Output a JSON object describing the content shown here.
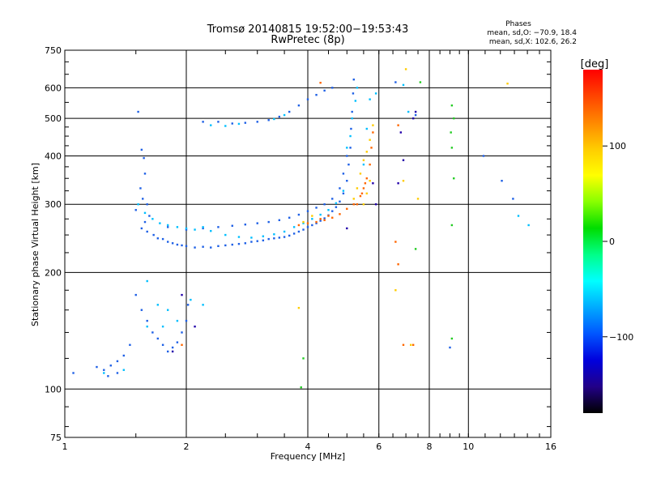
{
  "chart_data": {
    "type": "scatter",
    "title": "Tromsø 20140815 19:52:00−19:53:43",
    "subtitle": "RwPretec (8p)",
    "xlabel": "Frequency [MHz]",
    "ylabel": "Stationary phase Virtual Height [km]",
    "xscale": "log",
    "yscale": "log",
    "xlim": [
      1,
      16
    ],
    "ylim": [
      75,
      750
    ],
    "xticks": [
      1,
      2,
      4,
      6,
      8,
      10,
      16
    ],
    "yticks": [
      75,
      100,
      200,
      300,
      400,
      500,
      600,
      750
    ],
    "xgrid": [
      2,
      4,
      6,
      8,
      10
    ],
    "ygrid": [
      100,
      200,
      300,
      400,
      500,
      600
    ],
    "grid": true,
    "legend": {
      "title": "Phases",
      "line1": "mean, sd,O: −70.9, 18.4",
      "line2": "mean, sd,X: 102.6, 26.2",
      "placement": "top-right"
    },
    "colorbar": {
      "label": "[deg]",
      "min": -180,
      "max": 180,
      "ticks": [
        100,
        0,
        -100
      ],
      "stops": [
        "#ff0000",
        "#ff4400",
        "#ff8800",
        "#ffcc00",
        "#ffff00",
        "#88ff00",
        "#00dd00",
        "#00ff88",
        "#00ffff",
        "#00aaff",
        "#0055ff",
        "#0000dd",
        "#220088",
        "#000000"
      ]
    },
    "series": [
      {
        "color": "#1e60e6",
        "points": [
          [
            1.52,
            520
          ],
          [
            1.55,
            415
          ],
          [
            1.57,
            395
          ],
          [
            1.58,
            360
          ],
          [
            1.54,
            330
          ],
          [
            1.56,
            310
          ],
          [
            1.6,
            300
          ],
          [
            1.5,
            290
          ],
          [
            1.62,
            280
          ],
          [
            1.58,
            270
          ],
          [
            1.55,
            260
          ],
          [
            1.6,
            255
          ],
          [
            1.66,
            250
          ],
          [
            1.7,
            245
          ],
          [
            1.75,
            244
          ],
          [
            1.8,
            240
          ],
          [
            1.85,
            238
          ],
          [
            1.9,
            236
          ],
          [
            1.95,
            235
          ],
          [
            2.0,
            234
          ],
          [
            2.1,
            232
          ],
          [
            2.2,
            233
          ],
          [
            2.3,
            232
          ],
          [
            2.4,
            234
          ],
          [
            2.5,
            235
          ],
          [
            2.6,
            236
          ],
          [
            2.7,
            237
          ],
          [
            2.8,
            238
          ],
          [
            2.9,
            240
          ],
          [
            3.0,
            241
          ],
          [
            3.1,
            242
          ],
          [
            3.2,
            244
          ],
          [
            3.3,
            245
          ],
          [
            3.4,
            246
          ],
          [
            3.5,
            247
          ],
          [
            3.6,
            249
          ],
          [
            3.7,
            252
          ],
          [
            3.8,
            255
          ],
          [
            3.9,
            258
          ],
          [
            4.0,
            262
          ],
          [
            4.1,
            265
          ],
          [
            4.2,
            268
          ],
          [
            4.3,
            272
          ],
          [
            4.4,
            276
          ],
          [
            4.5,
            281
          ],
          [
            4.6,
            288
          ],
          [
            4.7,
            295
          ],
          [
            4.8,
            305
          ],
          [
            4.9,
            320
          ],
          [
            5.0,
            345
          ],
          [
            5.05,
            380
          ],
          [
            5.1,
            420
          ],
          [
            5.12,
            470
          ],
          [
            5.15,
            520
          ],
          [
            5.18,
            580
          ],
          [
            5.2,
            630
          ],
          [
            1.8,
            262
          ],
          [
            2.0,
            258
          ],
          [
            2.2,
            260
          ],
          [
            2.4,
            262
          ],
          [
            2.6,
            264
          ],
          [
            2.8,
            266
          ],
          [
            3.0,
            268
          ],
          [
            3.2,
            270
          ],
          [
            3.4,
            273
          ],
          [
            3.6,
            277
          ],
          [
            3.8,
            282
          ],
          [
            4.0,
            288
          ],
          [
            4.2,
            294
          ],
          [
            4.4,
            300
          ],
          [
            4.6,
            310
          ],
          [
            4.8,
            330
          ],
          [
            4.9,
            360
          ],
          [
            5.0,
            400
          ],
          [
            1.5,
            175
          ],
          [
            1.55,
            160
          ],
          [
            1.6,
            150
          ],
          [
            1.65,
            140
          ],
          [
            1.7,
            135
          ],
          [
            1.75,
            130
          ],
          [
            1.8,
            125
          ],
          [
            1.85,
            128
          ],
          [
            1.9,
            132
          ],
          [
            1.95,
            140
          ],
          [
            2.0,
            150
          ],
          [
            2.02,
            165
          ],
          [
            1.45,
            130
          ],
          [
            1.4,
            122
          ],
          [
            1.35,
            118
          ],
          [
            1.3,
            115
          ],
          [
            1.25,
            112
          ],
          [
            1.2,
            114
          ],
          [
            1.28,
            108
          ],
          [
            1.05,
            110
          ],
          [
            1.35,
            110
          ],
          [
            2.2,
            490
          ],
          [
            2.4,
            490
          ],
          [
            2.6,
            485
          ],
          [
            2.8,
            487
          ],
          [
            3.0,
            490
          ],
          [
            3.2,
            495
          ],
          [
            3.4,
            505
          ],
          [
            3.6,
            520
          ],
          [
            3.8,
            540
          ],
          [
            4.0,
            560
          ],
          [
            4.2,
            575
          ],
          [
            4.4,
            590
          ],
          [
            4.6,
            600
          ],
          [
            6.6,
            620
          ],
          [
            7.4,
            510
          ],
          [
            9.0,
            128
          ],
          [
            10.9,
            400
          ],
          [
            12.1,
            345
          ],
          [
            12.9,
            310
          ]
        ]
      },
      {
        "color": "#00bfff",
        "points": [
          [
            1.52,
            300
          ],
          [
            1.58,
            285
          ],
          [
            1.65,
            275
          ],
          [
            1.72,
            268
          ],
          [
            1.8,
            265
          ],
          [
            1.9,
            262
          ],
          [
            2.0,
            260
          ],
          [
            2.1,
            258
          ],
          [
            2.2,
            262
          ],
          [
            2.3,
            256
          ],
          [
            2.5,
            250
          ],
          [
            2.7,
            247
          ],
          [
            2.9,
            246
          ],
          [
            3.1,
            248
          ],
          [
            3.3,
            251
          ],
          [
            3.5,
            255
          ],
          [
            3.7,
            262
          ],
          [
            3.9,
            268
          ],
          [
            4.1,
            275
          ],
          [
            4.3,
            282
          ],
          [
            4.5,
            290
          ],
          [
            4.7,
            302
          ],
          [
            4.9,
            325
          ],
          [
            5.0,
            420
          ],
          [
            5.1,
            450
          ],
          [
            5.15,
            500
          ],
          [
            5.25,
            555
          ],
          [
            5.3,
            600
          ],
          [
            1.6,
            190
          ],
          [
            1.7,
            165
          ],
          [
            1.8,
            160
          ],
          [
            1.9,
            150
          ],
          [
            1.6,
            145
          ],
          [
            1.75,
            145
          ],
          [
            2.05,
            170
          ],
          [
            2.2,
            165
          ],
          [
            1.4,
            112
          ],
          [
            1.25,
            110
          ],
          [
            2.3,
            480
          ],
          [
            2.5,
            478
          ],
          [
            2.7,
            484
          ],
          [
            3.3,
            498
          ],
          [
            3.5,
            510
          ],
          [
            5.6,
            470
          ],
          [
            5.5,
            380
          ],
          [
            5.7,
            560
          ],
          [
            5.9,
            580
          ],
          [
            6.9,
            610
          ],
          [
            7.1,
            520
          ],
          [
            13.3,
            280
          ],
          [
            14.1,
            265
          ]
        ]
      },
      {
        "color": "#ff6600",
        "points": [
          [
            3.8,
            265
          ],
          [
            4.0,
            268
          ],
          [
            4.2,
            270
          ],
          [
            4.4,
            273
          ],
          [
            4.6,
            277
          ],
          [
            4.8,
            283
          ],
          [
            5.0,
            292
          ],
          [
            5.2,
            300
          ],
          [
            5.4,
            315
          ],
          [
            5.5,
            330
          ],
          [
            5.6,
            350
          ],
          [
            5.7,
            380
          ],
          [
            5.75,
            420
          ],
          [
            5.8,
            460
          ],
          [
            4.3,
            275
          ],
          [
            4.5,
            280
          ],
          [
            5.3,
            300
          ],
          [
            5.45,
            320
          ],
          [
            5.55,
            340
          ],
          [
            6.7,
            480
          ],
          [
            6.9,
            130
          ],
          [
            7.3,
            130
          ],
          [
            6.6,
            240
          ],
          [
            6.7,
            210
          ],
          [
            4.3,
            618
          ],
          [
            1.95,
            130
          ]
        ]
      },
      {
        "color": "#ffcc00",
        "points": [
          [
            5.3,
            330
          ],
          [
            5.4,
            360
          ],
          [
            5.5,
            390
          ],
          [
            5.6,
            410
          ],
          [
            5.7,
            440
          ],
          [
            5.8,
            480
          ],
          [
            5.5,
            300
          ],
          [
            5.6,
            320
          ],
          [
            5.7,
            345
          ],
          [
            5.2,
            310
          ],
          [
            3.9,
            270
          ],
          [
            4.1,
            280
          ],
          [
            6.9,
            345
          ],
          [
            7.5,
            310
          ],
          [
            7.0,
            670
          ],
          [
            12.5,
            615
          ],
          [
            3.8,
            162
          ],
          [
            6.6,
            180
          ],
          [
            7.2,
            130
          ]
        ]
      },
      {
        "color": "#22cc22",
        "points": [
          [
            7.6,
            620
          ],
          [
            9.1,
            540
          ],
          [
            9.2,
            500
          ],
          [
            9.05,
            460
          ],
          [
            9.1,
            420
          ],
          [
            9.2,
            350
          ],
          [
            9.1,
            265
          ],
          [
            9.1,
            135
          ],
          [
            3.9,
            120
          ],
          [
            3.85,
            101
          ],
          [
            7.4,
            230
          ]
        ]
      },
      {
        "color": "#2200aa",
        "points": [
          [
            6.8,
            460
          ],
          [
            7.3,
            500
          ],
          [
            7.4,
            520
          ],
          [
            6.9,
            390
          ],
          [
            5.9,
            300
          ],
          [
            5.8,
            340
          ],
          [
            5.0,
            260
          ],
          [
            2.1,
            145
          ],
          [
            1.95,
            175
          ],
          [
            1.85,
            125
          ],
          [
            6.7,
            340
          ]
        ]
      }
    ]
  }
}
